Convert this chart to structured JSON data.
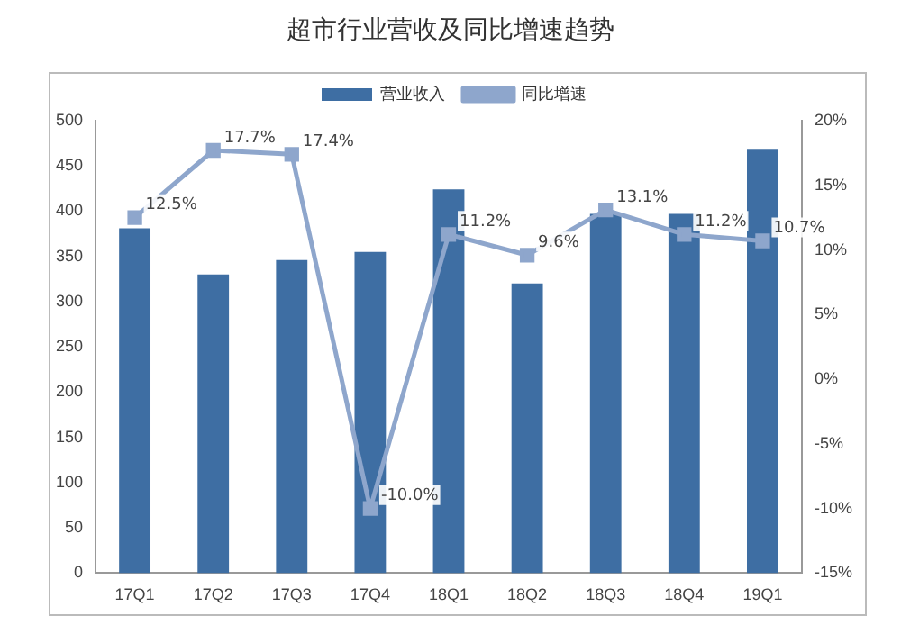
{
  "chart_data": {
    "type": "bar",
    "title": "超市行业营收及同比增速趋势",
    "categories": [
      "17Q1",
      "17Q2",
      "17Q3",
      "17Q4",
      "18Q1",
      "18Q2",
      "18Q3",
      "18Q4",
      "19Q1"
    ],
    "series": [
      {
        "name": "营业收入",
        "color": "#3e6ea3",
        "values": [
          381,
          330,
          346,
          355,
          424,
          320,
          397,
          397,
          468
        ]
      },
      {
        "name": "同比增速",
        "type": "line",
        "axis": "y2",
        "color": "#8ea6cc",
        "marker": "square",
        "values": [
          12.5,
          17.7,
          17.4,
          -10.0,
          11.2,
          9.6,
          13.1,
          11.2,
          10.7
        ],
        "value_labels": [
          "12.5%",
          "17.7%",
          "17.4%",
          "-10.0%",
          "11.2%",
          "9.6%",
          "13.1%",
          "11.2%",
          "10.7%"
        ]
      }
    ],
    "ylim": [
      0,
      500
    ],
    "yticks": [
      0,
      50,
      100,
      150,
      200,
      250,
      300,
      350,
      400,
      450,
      500
    ],
    "y2lim": [
      -15,
      20
    ],
    "y2ticks": [
      {
        "value": -15,
        "label": "-15%"
      },
      {
        "value": -10,
        "label": "-10%"
      },
      {
        "value": -5,
        "label": "-5%"
      },
      {
        "value": 0,
        "label": "0%"
      },
      {
        "value": 5,
        "label": "5%"
      },
      {
        "value": 10,
        "label": "10%"
      },
      {
        "value": 15,
        "label": "15%"
      },
      {
        "value": 20,
        "label": "20%"
      }
    ],
    "grid": false,
    "legend": "top"
  }
}
